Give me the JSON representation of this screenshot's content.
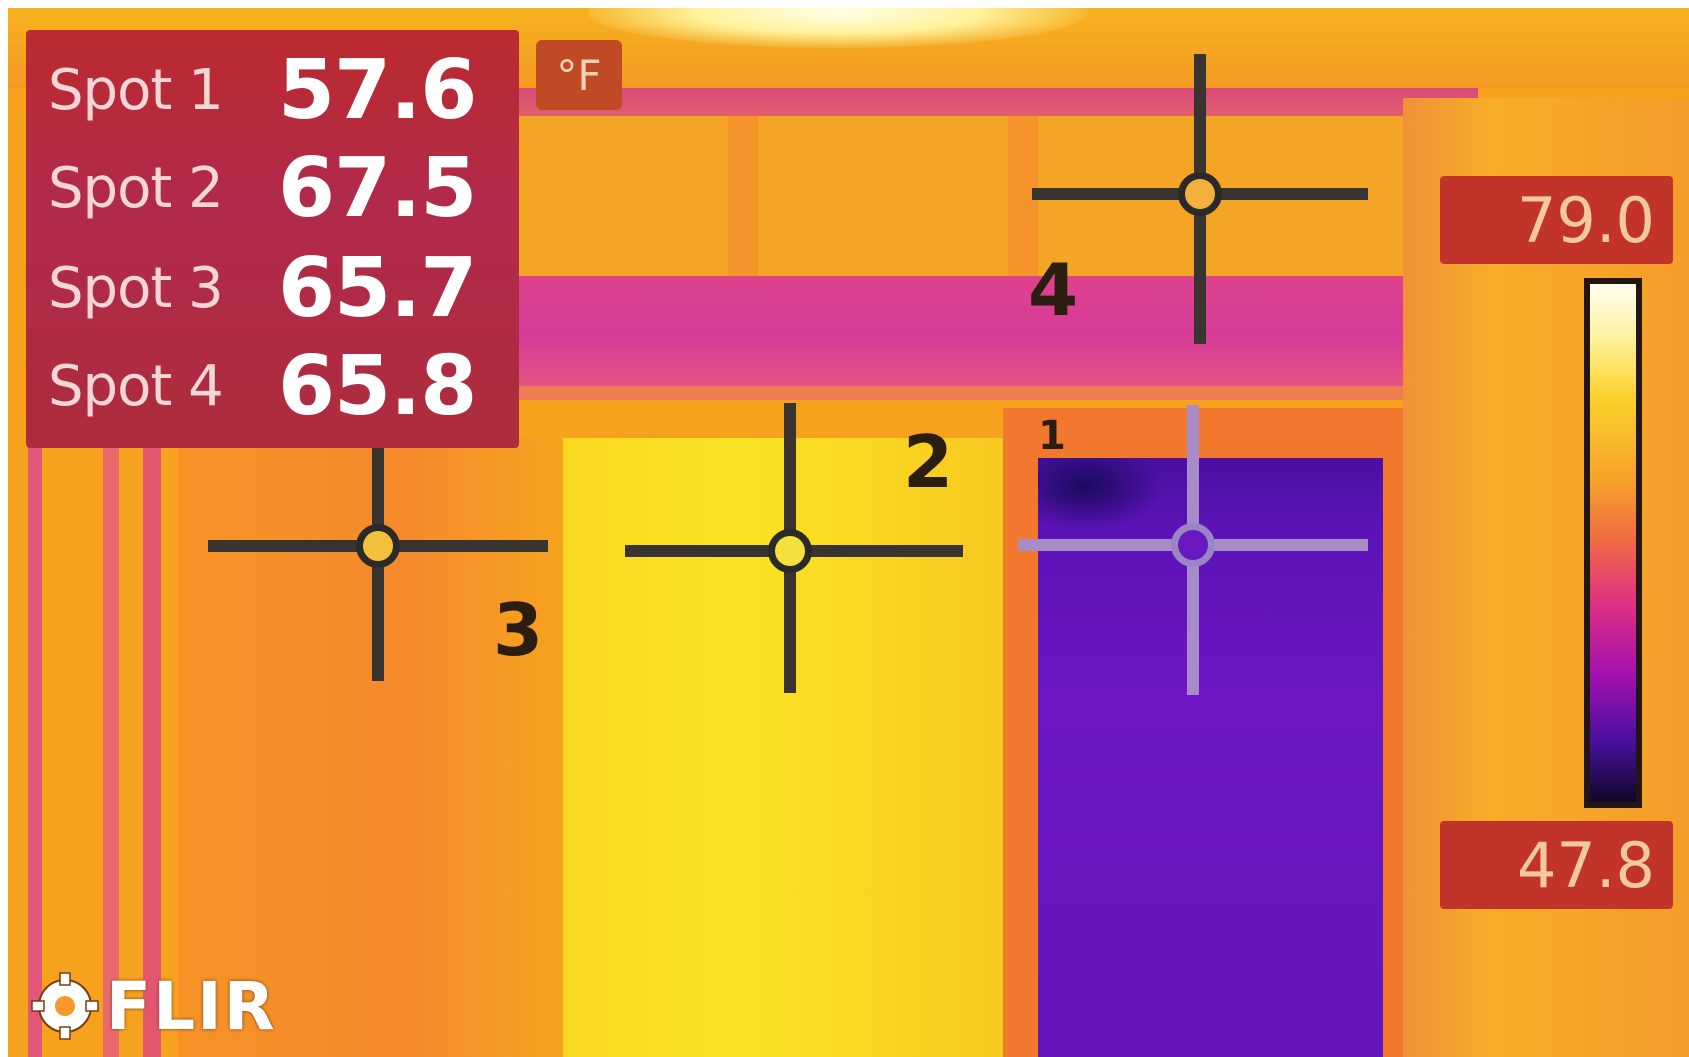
{
  "readout": {
    "spots": [
      {
        "label": "Spot 1",
        "value": "57.6"
      },
      {
        "label": "Spot 2",
        "value": "67.5"
      },
      {
        "label": "Spot 3",
        "value": "65.7"
      },
      {
        "label": "Spot 4",
        "value": "65.8"
      }
    ],
    "unit": "°F"
  },
  "markers": [
    {
      "number": "1"
    },
    {
      "number": "2"
    },
    {
      "number": "3"
    },
    {
      "number": "4"
    }
  ],
  "scale": {
    "max": "79.0",
    "min": "47.8"
  },
  "logo": {
    "text": "FLIR"
  },
  "colors": {
    "readout_bg": "#b22a40",
    "cold": "#6614bd",
    "hot": "#fae324",
    "warm": "#f69226"
  }
}
